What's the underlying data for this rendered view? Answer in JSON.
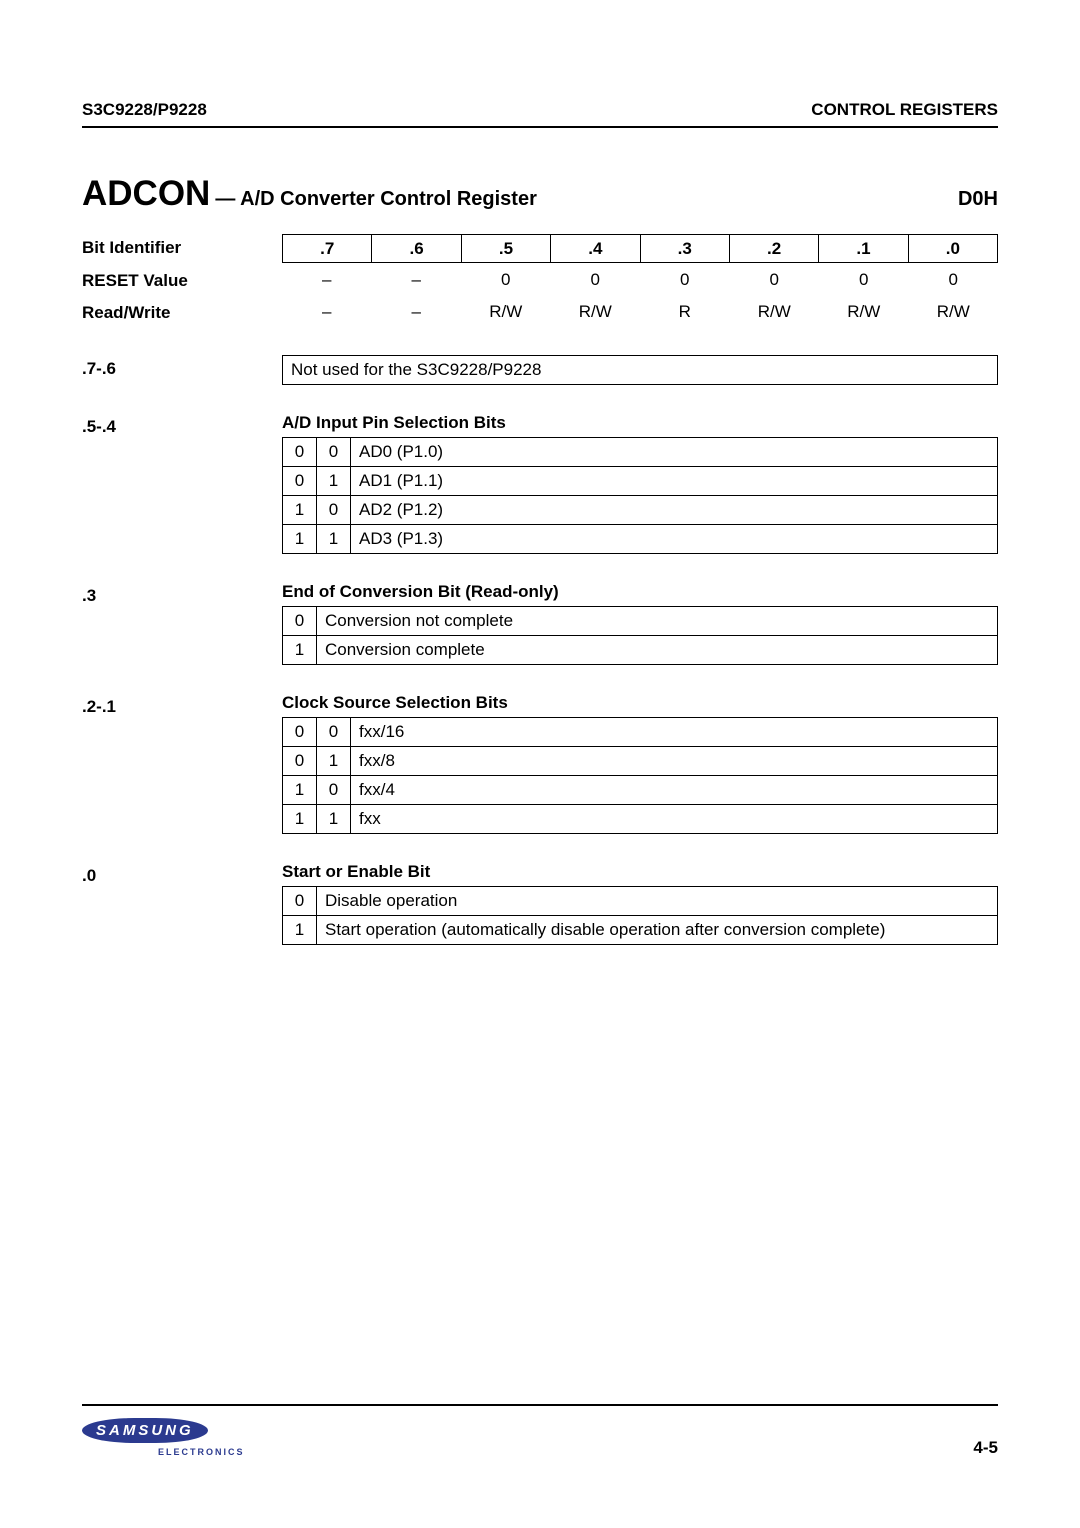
{
  "header": {
    "left": "S3C9228/P9228",
    "right": "CONTROL REGISTERS"
  },
  "title": {
    "main": "ADCON",
    "sub": "— A/D Converter Control Register",
    "addr": "D0H"
  },
  "bit_table": {
    "label": "Bit Identifier",
    "cells": [
      ".7",
      ".6",
      ".5",
      ".4",
      ".3",
      ".2",
      ".1",
      ".0"
    ]
  },
  "reset_row": {
    "label": "RESET Value",
    "cells": [
      "–",
      "–",
      "0",
      "0",
      "0",
      "0",
      "0",
      "0"
    ]
  },
  "rw_row": {
    "label": "Read/Write",
    "cells": [
      "–",
      "–",
      "R/W",
      "R/W",
      "R",
      "R/W",
      "R/W",
      "R/W"
    ]
  },
  "sec76": {
    "label": ".7-.6",
    "text": "Not used for the S3C9228/P9228"
  },
  "sec54": {
    "label": ".5-.4",
    "title": "A/D Input Pin Selection Bits",
    "rows": [
      {
        "b1": "0",
        "b0": "0",
        "desc": "AD0 (P1.0)"
      },
      {
        "b1": "0",
        "b0": "1",
        "desc": "AD1 (P1.1)"
      },
      {
        "b1": "1",
        "b0": "0",
        "desc": "AD2 (P1.2)"
      },
      {
        "b1": "1",
        "b0": "1",
        "desc": "AD3 (P1.3)"
      }
    ]
  },
  "sec3": {
    "label": ".3",
    "title": "End of Conversion Bit (Read-only)",
    "rows": [
      {
        "b": "0",
        "desc": "Conversion not complete"
      },
      {
        "b": "1",
        "desc": "Conversion complete"
      }
    ]
  },
  "sec21": {
    "label": ".2-.1",
    "title": "Clock Source Selection Bits",
    "rows": [
      {
        "b1": "0",
        "b0": "0",
        "desc": "fxx/16"
      },
      {
        "b1": "0",
        "b0": "1",
        "desc": "fxx/8"
      },
      {
        "b1": "1",
        "b0": "0",
        "desc": "fxx/4"
      },
      {
        "b1": "1",
        "b0": "1",
        "desc": "fxx"
      }
    ]
  },
  "sec0": {
    "label": ".0",
    "title": "Start or Enable Bit",
    "rows": [
      {
        "b": "0",
        "desc": "Disable operation"
      },
      {
        "b": "1",
        "desc": "Start operation (automatically disable operation after conversion complete)"
      }
    ]
  },
  "footer": {
    "logo": "SAMSUNG",
    "logo_sub": "ELECTRONICS",
    "page": "4-5"
  }
}
